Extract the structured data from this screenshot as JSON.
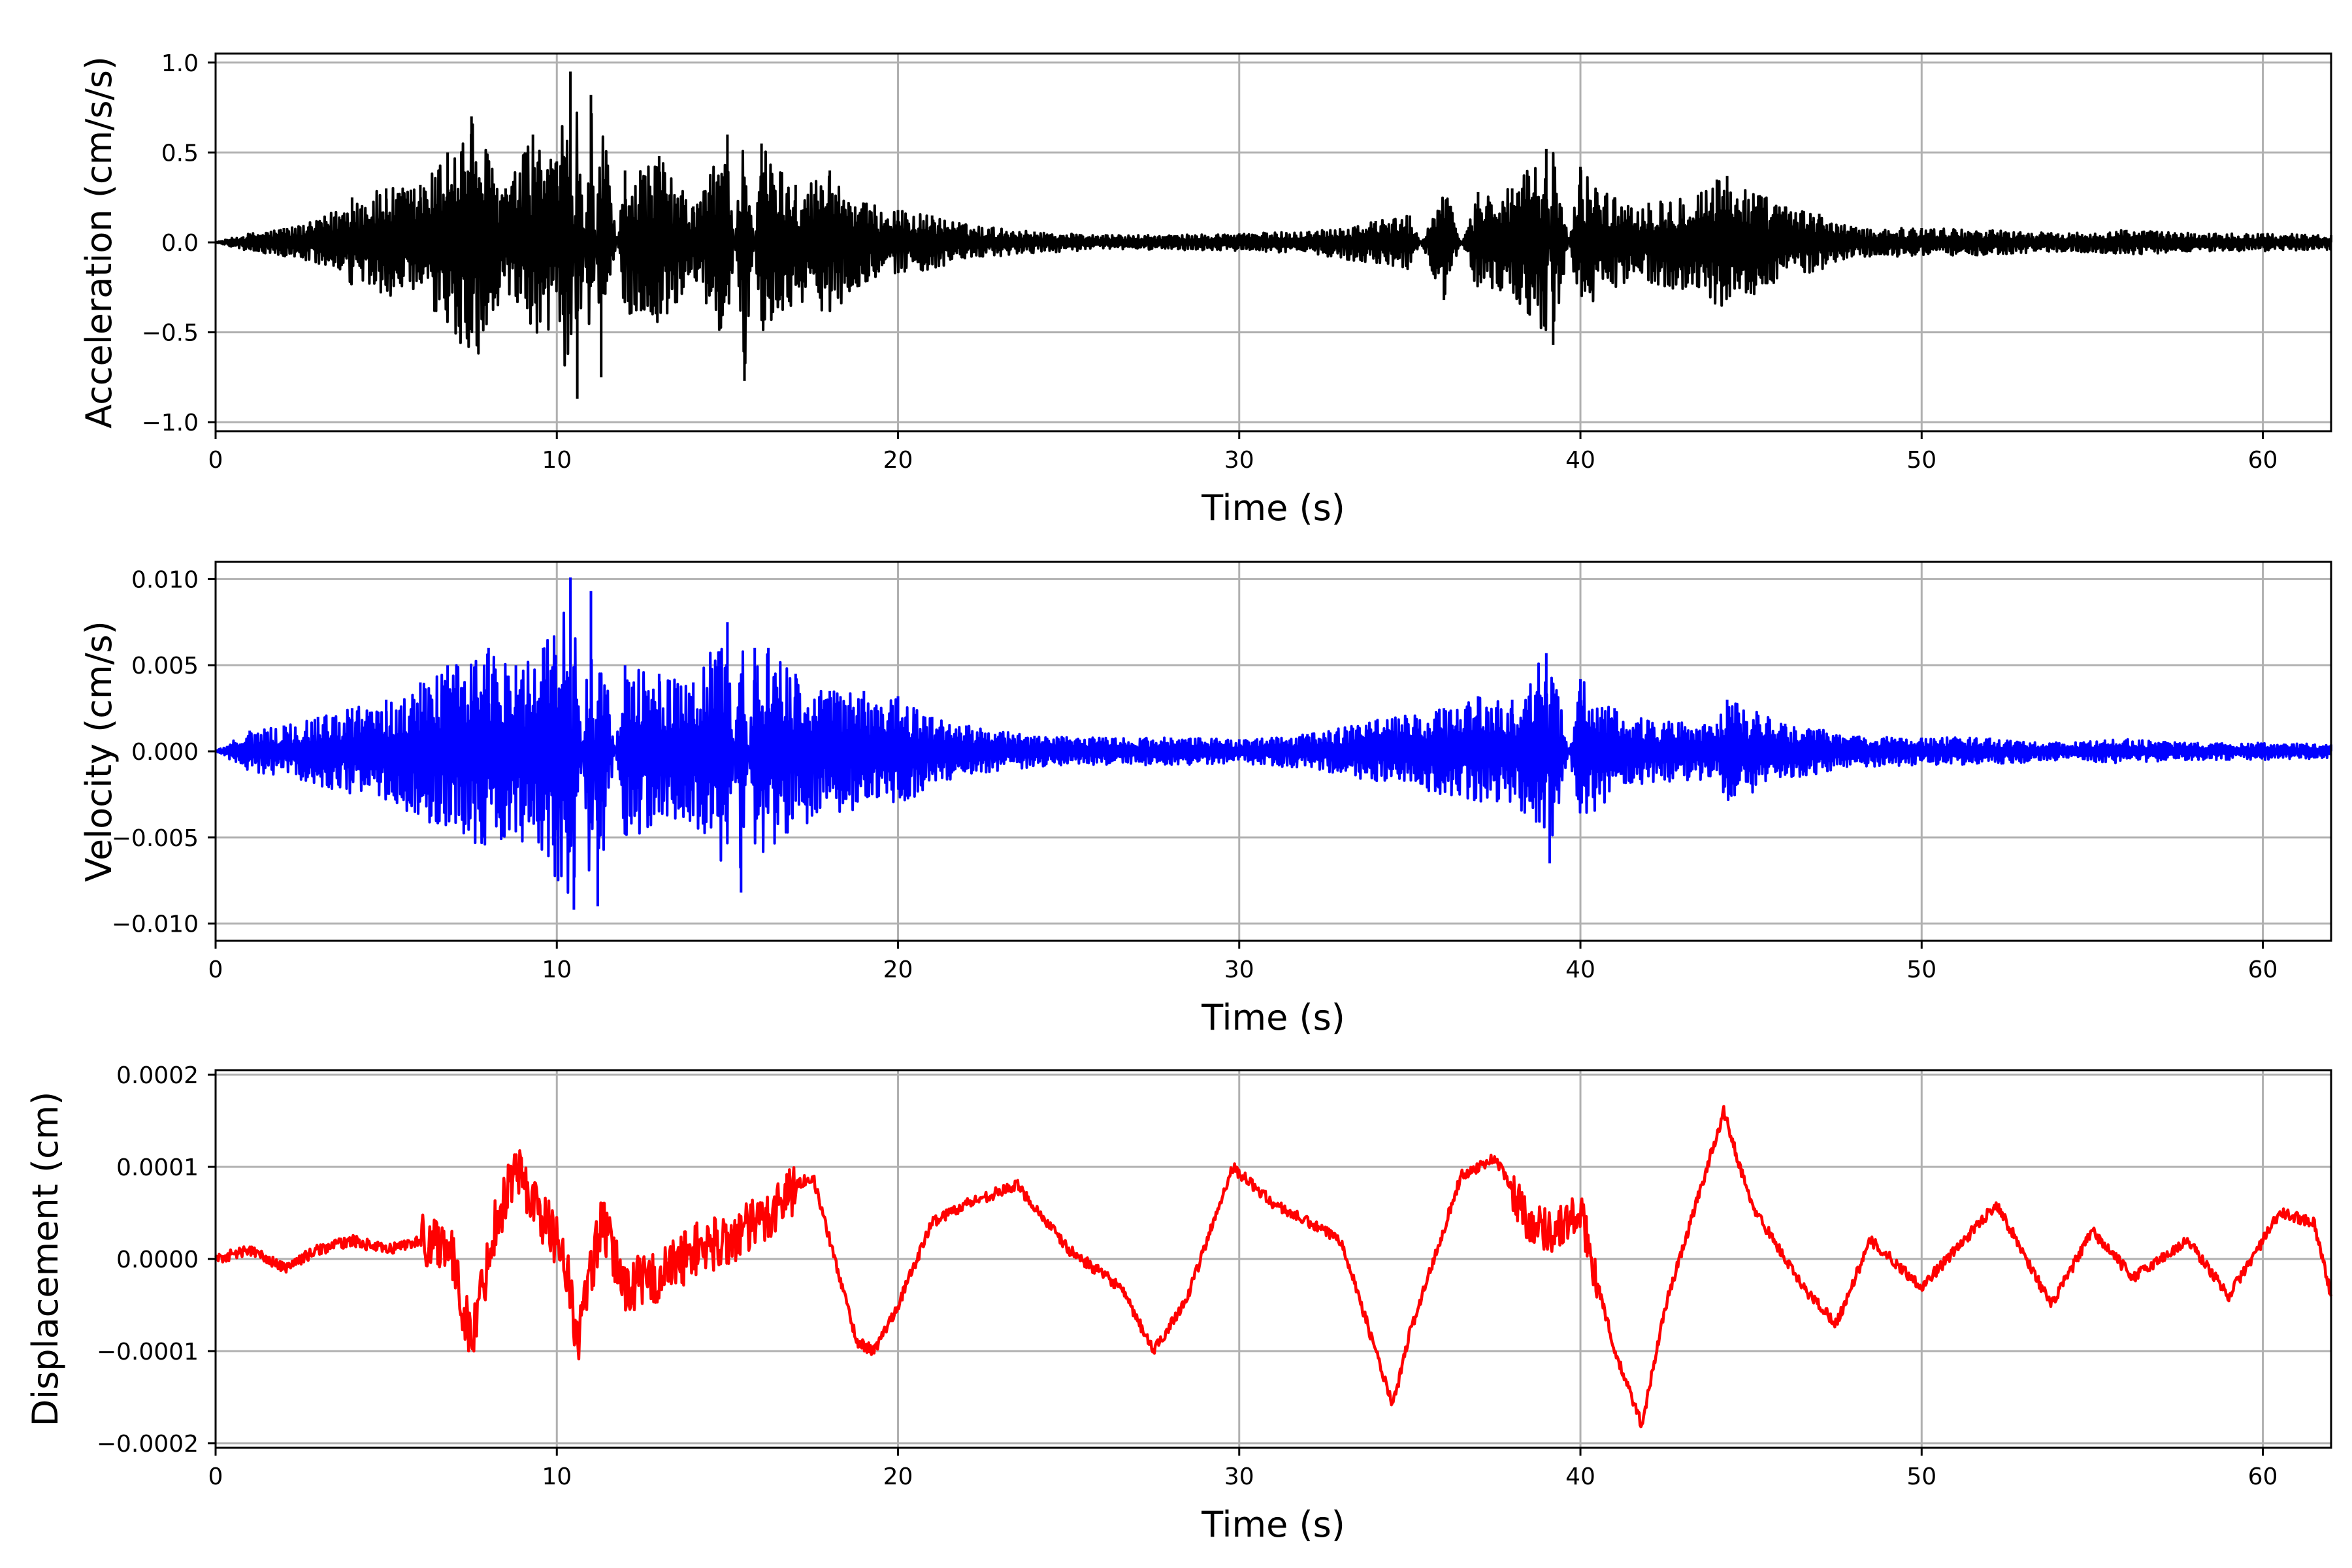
{
  "chart_data": [
    {
      "type": "line",
      "title": "",
      "xlabel": "Time (s)",
      "ylabel": "Acceleration (cm/s/s)",
      "xlim": [
        0,
        62
      ],
      "ylim": [
        -1.05,
        1.05
      ],
      "xticks": [
        0,
        10,
        20,
        30,
        40,
        50,
        60
      ],
      "yticks": [
        -1.0,
        -0.5,
        0.0,
        0.5,
        1.0
      ],
      "ytick_labels": [
        "−1.0",
        "−0.5",
        "0.0",
        "0.5",
        "1.0"
      ],
      "grid": true,
      "color": "#000000",
      "series": [
        {
          "x": [
            0,
            1,
            2,
            3,
            4,
            5,
            6,
            6.8,
            7.5,
            8.5,
            9.3,
            10,
            10.4,
            10.6,
            11,
            11.3,
            12,
            13,
            14,
            15,
            15.5,
            16,
            17,
            18,
            19,
            20,
            21,
            22,
            24,
            26,
            28,
            30,
            32,
            34,
            35,
            36,
            37,
            38,
            39,
            39.2,
            40,
            41,
            42,
            44,
            44.3,
            46,
            47,
            48,
            50,
            52,
            54,
            56,
            58,
            60,
            62
          ],
          "y": [
            0.0,
            0.05,
            0.08,
            0.12,
            0.25,
            0.3,
            0.32,
            0.5,
            0.7,
            0.3,
            0.6,
            0.45,
            0.95,
            -0.87,
            0.82,
            -0.75,
            0.4,
            0.48,
            0.2,
            0.6,
            -0.77,
            0.55,
            0.32,
            0.4,
            0.22,
            0.18,
            0.15,
            0.1,
            0.06,
            0.04,
            0.04,
            0.05,
            0.06,
            0.12,
            0.15,
            -0.32,
            0.28,
            0.3,
            0.52,
            -0.57,
            0.42,
            0.25,
            0.22,
            0.35,
            0.37,
            0.2,
            0.16,
            0.08,
            0.08,
            0.07,
            0.05,
            0.07,
            0.05,
            0.05,
            0.04
          ]
        }
      ]
    },
    {
      "type": "line",
      "title": "",
      "xlabel": "Time (s)",
      "ylabel": "Velocity (cm/s)",
      "xlim": [
        0,
        62
      ],
      "ylim": [
        -0.011,
        0.011
      ],
      "xticks": [
        0,
        10,
        20,
        30,
        40,
        50,
        60
      ],
      "yticks": [
        -0.01,
        -0.005,
        0.0,
        0.005,
        0.01
      ],
      "ytick_labels": [
        "−0.010",
        "−0.005",
        "0.000",
        "0.005",
        "0.010"
      ],
      "grid": true,
      "color": "#0000ff",
      "series": [
        {
          "x": [
            0,
            1,
            2,
            3,
            4,
            5,
            6,
            6.8,
            8,
            8.8,
            9.6,
            10.4,
            10.5,
            11,
            11.2,
            12,
            13,
            14,
            15,
            15.4,
            15.8,
            16.2,
            17,
            18,
            19,
            20,
            21,
            22,
            24,
            26,
            28,
            30,
            32,
            34,
            36,
            37,
            38,
            39,
            39.1,
            40,
            41,
            42,
            44,
            44.3,
            46,
            47,
            48,
            50,
            52,
            54,
            56,
            58,
            60,
            62
          ],
          "y": [
            0.0,
            0.0012,
            0.0015,
            0.002,
            0.0025,
            0.003,
            0.004,
            0.005,
            0.006,
            0.005,
            0.006,
            0.0101,
            -0.0092,
            0.0093,
            -0.009,
            0.005,
            0.0045,
            0.004,
            0.0075,
            -0.0082,
            0.006,
            0.006,
            0.0045,
            0.0035,
            0.0035,
            0.0032,
            0.002,
            0.0015,
            0.0009,
            0.0008,
            0.0008,
            0.0007,
            0.001,
            0.0018,
            0.0025,
            0.0032,
            0.003,
            0.0057,
            -0.0065,
            0.0042,
            0.0025,
            0.0018,
            0.0016,
            0.003,
            0.0016,
            0.0013,
            0.0009,
            0.0008,
            0.0008,
            0.0005,
            0.0007,
            0.0005,
            0.0005,
            0.0004
          ]
        }
      ]
    },
    {
      "type": "line",
      "title": "",
      "xlabel": "Time (s)",
      "ylabel": "Displacement (cm)",
      "xlim": [
        0,
        62
      ],
      "ylim": [
        -0.000205,
        0.000205
      ],
      "xticks": [
        0,
        10,
        20,
        30,
        40,
        50,
        60
      ],
      "yticks": [
        -0.0002,
        -0.0001,
        0.0,
        0.0001,
        0.0002
      ],
      "ytick_labels": [
        "−0.0002",
        "−0.0001",
        "0.0000",
        "0.0001",
        "0.0002"
      ],
      "grid": true,
      "color": "#ff0000",
      "series": [
        {
          "x": [
            0,
            1,
            2,
            3,
            4,
            5,
            6,
            6.8,
            7.5,
            8.2,
            8.8,
            9.5,
            10.2,
            10.6,
            11.3,
            12,
            13,
            14,
            15,
            16,
            17,
            17.5,
            18,
            18.8,
            19.3,
            20,
            21,
            22,
            23.5,
            25,
            26.5,
            27.5,
            28.5,
            29.8,
            31,
            33,
            34,
            34.5,
            35,
            36.5,
            37.5,
            38.5,
            39.2,
            40,
            41,
            41.8,
            42.5,
            44.2,
            45,
            46.5,
            47.5,
            48.5,
            50,
            51,
            52.2,
            53.8,
            55,
            56.2,
            57.8,
            59,
            60.5,
            61.5,
            62
          ],
          "y": [
            0.0,
            1e-05,
            -1e-05,
            1e-05,
            2e-05,
            1e-05,
            2e-05,
            2e-05,
            -9e-05,
            4e-05,
            0.0001,
            5e-05,
            1e-05,
            -9e-05,
            4e-05,
            -3e-05,
            -2e-05,
            1e-05,
            2e-05,
            4e-05,
            8e-05,
            9e-05,
            2e-05,
            -9e-05,
            -0.0001,
            -5e-05,
            4e-05,
            6e-05,
            8e-05,
            1e-05,
            -3e-05,
            -0.0001,
            -4e-05,
            0.0001,
            6e-05,
            2e-05,
            -0.0001,
            -0.00016,
            -8e-05,
            9e-05,
            0.00011,
            4e-05,
            3e-05,
            5e-05,
            -0.0001,
            -0.00018,
            -5e-05,
            0.00016,
            6e-05,
            -3e-05,
            -7e-05,
            2e-05,
            -3e-05,
            1e-05,
            6e-05,
            -5e-05,
            3e-05,
            -2e-05,
            2e-05,
            -4e-05,
            5e-05,
            4e-05,
            -4e-05
          ]
        }
      ]
    }
  ]
}
